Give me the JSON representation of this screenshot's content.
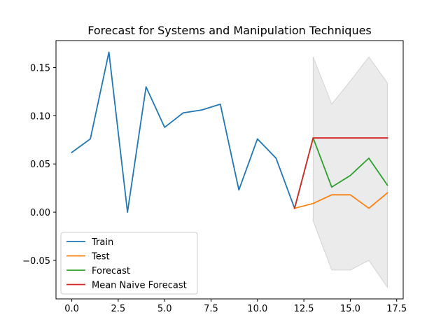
{
  "chart_data": {
    "type": "line",
    "title": "Forecast for Systems and Manipulation Techniques",
    "xlabel": "",
    "ylabel": "",
    "xlim": [
      -0.85,
      17.85
    ],
    "ylim": [
      -0.09,
      0.178
    ],
    "xticks": [
      0.0,
      2.5,
      5.0,
      7.5,
      10.0,
      12.5,
      15.0,
      17.5
    ],
    "xtick_labels": [
      "0.0",
      "2.5",
      "5.0",
      "7.5",
      "10.0",
      "12.5",
      "15.0",
      "17.5"
    ],
    "yticks": [
      -0.05,
      0.0,
      0.05,
      0.1,
      0.15
    ],
    "ytick_labels": [
      "−0.05",
      "0.00",
      "0.05",
      "0.10",
      "0.15"
    ],
    "grid": false,
    "legend_position": "lower-left",
    "series": [
      {
        "name": "Train",
        "color": "#1f77b4",
        "x": [
          0,
          1,
          2,
          3,
          4,
          5,
          6,
          7,
          8,
          9,
          10,
          11,
          12
        ],
        "y": [
          0.062,
          0.076,
          0.166,
          0.0,
          0.13,
          0.088,
          0.103,
          0.106,
          0.112,
          0.023,
          0.076,
          0.056,
          0.004
        ]
      },
      {
        "name": "Test",
        "color": "#ff7f0e",
        "x": [
          12,
          13,
          14,
          15,
          16,
          17
        ],
        "y": [
          0.004,
          0.009,
          0.018,
          0.018,
          0.004,
          0.02
        ]
      },
      {
        "name": "Forecast",
        "color": "#2ca02c",
        "x": [
          12,
          13,
          14,
          15,
          16,
          17
        ],
        "y": [
          0.004,
          0.077,
          0.026,
          0.038,
          0.056,
          0.028
        ]
      },
      {
        "name": "Mean Naive Forecast",
        "color": "#d62728",
        "x": [
          12,
          13,
          14,
          15,
          16,
          17
        ],
        "y": [
          0.004,
          0.077,
          0.077,
          0.077,
          0.077,
          0.077
        ]
      }
    ],
    "confidence_band": {
      "color": "#d3d3d3",
      "x": [
        13,
        14,
        15,
        16,
        17
      ],
      "upper": [
        0.161,
        0.112,
        0.136,
        0.161,
        0.134
      ],
      "lower": [
        -0.009,
        -0.06,
        -0.06,
        -0.05,
        -0.078
      ]
    }
  }
}
